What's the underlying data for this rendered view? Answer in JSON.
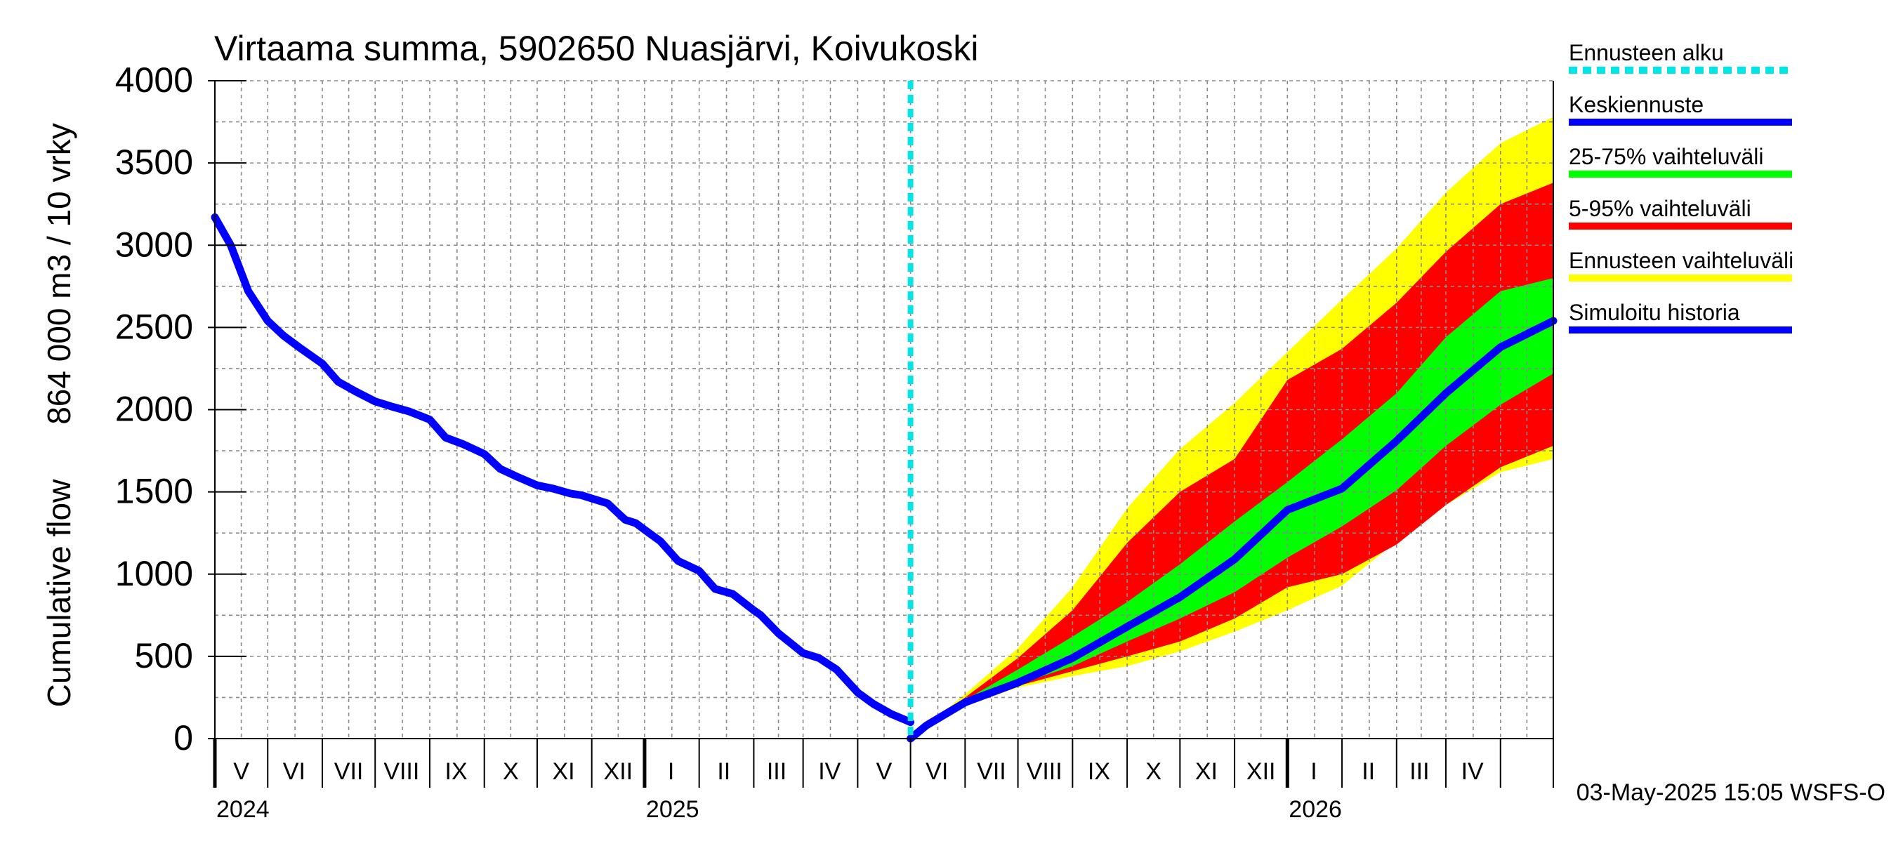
{
  "chart_data": {
    "type": "area",
    "title": "Virtaama summa, 5902650 Nuasjärvi, Koivukoski",
    "ylabel_lines": [
      "Cumulative flow",
      "864 000 m3 / 10 vrky"
    ],
    "ylim": [
      0,
      4000
    ],
    "yticks": [
      0,
      500,
      1000,
      1500,
      2000,
      2500,
      3000,
      3500,
      4000
    ],
    "xlim": [
      "2024-04-01",
      "2026-05-01"
    ],
    "forecast_start": "2025-05-01",
    "month_labels": [
      {
        "label": "V",
        "mid": "2024-04-16"
      },
      {
        "label": "VI",
        "mid": "2024-05-16"
      },
      {
        "label": "VII",
        "mid": "2024-06-16"
      },
      {
        "label": "VIII",
        "mid": "2024-07-16"
      },
      {
        "label": "IX",
        "mid": "2024-08-16"
      },
      {
        "label": "X",
        "mid": "2024-09-16"
      },
      {
        "label": "XI",
        "mid": "2024-10-16"
      },
      {
        "label": "XII",
        "mid": "2024-11-16"
      },
      {
        "label": "I",
        "mid": "2024-12-16"
      },
      {
        "label": "II",
        "mid": "2025-01-15"
      },
      {
        "label": "III",
        "mid": "2025-02-14"
      },
      {
        "label": "IV",
        "mid": "2025-03-16"
      },
      {
        "label": "V",
        "mid": "2025-04-16"
      },
      {
        "label": "VI",
        "mid": "2025-05-16"
      },
      {
        "label": "VII",
        "mid": "2025-06-16"
      },
      {
        "label": "VIII",
        "mid": "2025-07-16"
      },
      {
        "label": "IX",
        "mid": "2025-08-16"
      },
      {
        "label": "X",
        "mid": "2025-09-16"
      },
      {
        "label": "XI",
        "mid": "2025-10-16"
      },
      {
        "label": "XII",
        "mid": "2025-11-16"
      },
      {
        "label": "I",
        "mid": "2025-12-16"
      },
      {
        "label": "II",
        "mid": "2026-01-16"
      },
      {
        "label": "III",
        "mid": "2026-02-14"
      },
      {
        "label": "IV",
        "mid": "2026-03-16"
      }
    ],
    "month_boundaries": [
      "2024-04-01",
      "2024-05-01",
      "2024-06-01",
      "2024-07-01",
      "2024-08-01",
      "2024-09-01",
      "2024-10-01",
      "2024-11-01",
      "2024-12-01",
      "2025-01-01",
      "2025-02-01",
      "2025-03-01",
      "2025-04-01",
      "2025-05-01",
      "2025-06-01",
      "2025-07-01",
      "2025-08-01",
      "2025-09-01",
      "2025-10-01",
      "2025-11-01",
      "2025-12-01",
      "2026-01-01",
      "2026-02-01",
      "2026-03-01",
      "2026-04-01",
      "2026-05-01"
    ],
    "year_marks": [
      {
        "label": "2024",
        "date": "2024-04-01"
      },
      {
        "label": "2025",
        "date": "2024-12-01"
      },
      {
        "label": "2026",
        "date": "2025-12-01"
      }
    ],
    "series": [
      {
        "name": "Simuloitu historia",
        "color": "#0000ff",
        "x": [
          "2024-04-01",
          "2024-04-10",
          "2024-04-20",
          "2024-05-01",
          "2024-05-10",
          "2024-05-20",
          "2024-06-01",
          "2024-06-10",
          "2024-06-20",
          "2024-07-01",
          "2024-07-10",
          "2024-07-20",
          "2024-08-01",
          "2024-08-10",
          "2024-08-20",
          "2024-09-01",
          "2024-09-10",
          "2024-09-20",
          "2024-10-01",
          "2024-10-10",
          "2024-10-20",
          "2024-10-26",
          "2024-11-01",
          "2024-11-10",
          "2024-11-20",
          "2024-11-26",
          "2024-12-01",
          "2024-12-10",
          "2024-12-20",
          "2025-01-01",
          "2025-01-10",
          "2025-01-20",
          "2025-02-01",
          "2025-02-05",
          "2025-02-15",
          "2025-03-01",
          "2025-03-10",
          "2025-03-20",
          "2025-04-01",
          "2025-04-10",
          "2025-04-20",
          "2025-05-01"
        ],
        "y": [
          3170,
          3000,
          2720,
          2540,
          2450,
          2370,
          2280,
          2170,
          2110,
          2050,
          2020,
          1990,
          1940,
          1830,
          1790,
          1730,
          1640,
          1590,
          1540,
          1520,
          1490,
          1480,
          1460,
          1430,
          1330,
          1310,
          1270,
          1200,
          1080,
          1020,
          910,
          880,
          780,
          750,
          640,
          520,
          490,
          420,
          280,
          210,
          150,
          100
        ]
      },
      {
        "name": "Keskiennuste",
        "color": "#0000ff",
        "x": [
          "2025-05-01",
          "2025-05-10",
          "2025-06-01",
          "2025-07-01",
          "2025-08-01",
          "2025-09-01",
          "2025-10-01",
          "2025-11-01",
          "2025-12-01",
          "2026-01-01",
          "2026-02-01",
          "2026-03-01",
          "2026-04-01",
          "2026-05-01"
        ],
        "y": [
          0,
          80,
          220,
          340,
          490,
          680,
          860,
          1090,
          1390,
          1520,
          1810,
          2100,
          2380,
          2540
        ]
      }
    ],
    "bands": [
      {
        "name": "Ennusteen vaihteluväli",
        "color": "#ffff00",
        "x": [
          "2025-05-01",
          "2025-06-01",
          "2025-07-01",
          "2025-08-01",
          "2025-09-01",
          "2025-10-01",
          "2025-11-01",
          "2025-12-01",
          "2026-01-01",
          "2026-02-01",
          "2026-03-01",
          "2026-04-01",
          "2026-05-01"
        ],
        "lower": [
          0,
          200,
          310,
          380,
          440,
          530,
          650,
          780,
          930,
          1200,
          1420,
          1620,
          1700
        ],
        "upper": [
          0,
          270,
          550,
          920,
          1400,
          1760,
          2040,
          2350,
          2670,
          2980,
          3320,
          3620,
          3780
        ]
      },
      {
        "name": "5-95% vaihteluväli",
        "color": "#ff0000",
        "x": [
          "2025-05-01",
          "2025-06-01",
          "2025-07-01",
          "2025-08-01",
          "2025-09-01",
          "2025-10-01",
          "2025-11-01",
          "2025-12-01",
          "2026-01-01",
          "2026-02-01",
          "2026-03-01",
          "2026-04-01",
          "2026-05-01"
        ],
        "lower": [
          0,
          210,
          320,
          410,
          500,
          590,
          730,
          920,
          1000,
          1180,
          1420,
          1650,
          1780
        ],
        "upper": [
          0,
          250,
          490,
          780,
          1190,
          1500,
          1700,
          2180,
          2370,
          2650,
          2960,
          3250,
          3380
        ]
      },
      {
        "name": "25-75% vaihteluväli",
        "color": "#00ff00",
        "x": [
          "2025-05-01",
          "2025-06-01",
          "2025-07-01",
          "2025-08-01",
          "2025-09-01",
          "2025-10-01",
          "2025-11-01",
          "2025-12-01",
          "2026-01-01",
          "2026-02-01",
          "2026-03-01",
          "2026-04-01",
          "2026-05-01"
        ],
        "lower": [
          0,
          215,
          330,
          440,
          590,
          730,
          890,
          1100,
          1290,
          1510,
          1780,
          2030,
          2220
        ],
        "upper": [
          0,
          235,
          420,
          620,
          830,
          1060,
          1320,
          1560,
          1820,
          2100,
          2440,
          2720,
          2800
        ]
      }
    ],
    "legend": {
      "placement": "right",
      "items": [
        {
          "label": "Ennusteen alku",
          "color": "#00e5e5",
          "style": "dashed"
        },
        {
          "label": "Keskiennuste",
          "color": "#0000ff",
          "style": "solid"
        },
        {
          "label": "25-75% vaihteluväli",
          "color": "#00ff00",
          "style": "solid"
        },
        {
          "label": "5-95% vaihteluväli",
          "color": "#ff0000",
          "style": "solid"
        },
        {
          "label": "Ennusteen vaihteluväli",
          "color": "#ffff00",
          "style": "solid"
        },
        {
          "label": "Simuloitu historia",
          "color": "#0000ff",
          "style": "solid"
        }
      ]
    },
    "footer": "03-May-2025 15:05 WSFS-O",
    "grid": true
  }
}
